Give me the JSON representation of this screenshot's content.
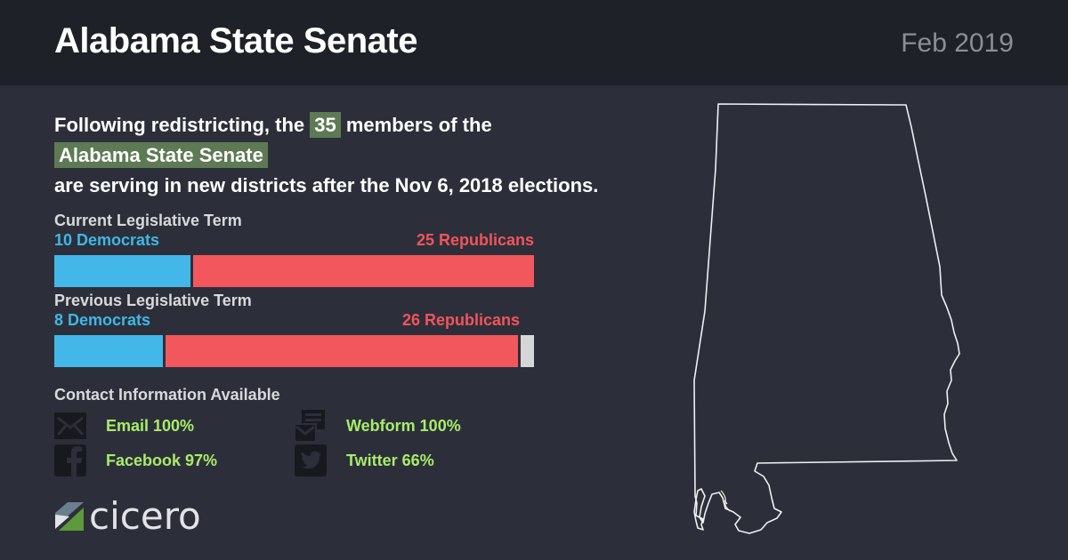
{
  "header": {
    "title": "Alabama State Senate",
    "date": "Feb 2019"
  },
  "intro": {
    "line1_pre": "Following redistricting, the",
    "member_count": "35",
    "line1_post": "members of the",
    "body_name": "Alabama State Senate",
    "line3": "are serving in new districts after the Nov 6, 2018 elections."
  },
  "current_term": {
    "label": "Current Legislative Term",
    "dem_label": "10 Democrats",
    "rep_label": "25 Republicans",
    "dem": 10,
    "rep": 25,
    "vacant": 0,
    "total": 35
  },
  "previous_term": {
    "label": "Previous Legislative Term",
    "dem_label": "8 Democrats",
    "rep_label": "26 Republicans",
    "dem": 8,
    "rep": 26,
    "vacant": 1,
    "total": 35
  },
  "contact": {
    "title": "Contact Information Available",
    "items": [
      {
        "label": "Email 100%",
        "icon": "envelope-icon"
      },
      {
        "label": "Webform 100%",
        "icon": "webform-icon"
      },
      {
        "label": "Facebook 97%",
        "icon": "facebook-icon"
      },
      {
        "label": "Twitter 66%",
        "icon": "twitter-icon"
      }
    ]
  },
  "brand": {
    "logo_text": "cicero"
  },
  "colors": {
    "democrat": "#43b8e8",
    "republican": "#f2575e",
    "vacant": "#d6d6d6",
    "highlight": "#5e7a55",
    "contact_text": "#a8ec6a",
    "background": "#2c2f3a",
    "header": "#1f2128"
  }
}
